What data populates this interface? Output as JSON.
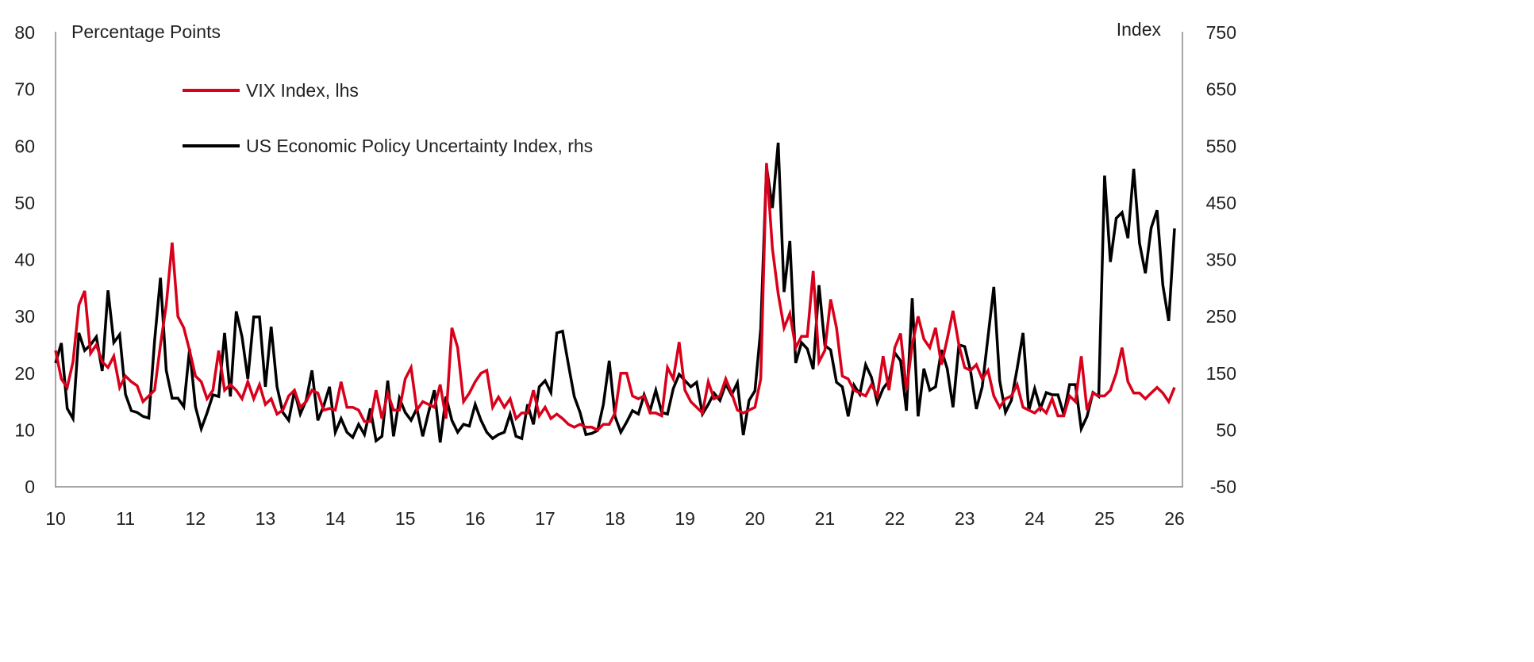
{
  "chart_data": {
    "type": "line",
    "left_axis": {
      "label": "Percentage Points",
      "ylim": [
        0,
        80
      ],
      "ticks": [
        "0",
        "10",
        "20",
        "30",
        "40",
        "50",
        "60",
        "70",
        "80"
      ]
    },
    "right_axis": {
      "label": "Index",
      "ylim": [
        -50,
        750
      ],
      "ticks": [
        "-50",
        "50",
        "150",
        "250",
        "350",
        "450",
        "550",
        "650",
        "750"
      ]
    },
    "x_axis": {
      "ticks": [
        "10",
        "11",
        "12",
        "13",
        "14",
        "15",
        "16",
        "17",
        "18",
        "19",
        "20",
        "21",
        "22",
        "23",
        "24",
        "25",
        "26"
      ],
      "range": [
        "2010-01",
        "2026-01"
      ],
      "frequency": "monthly"
    },
    "grid": false,
    "legend_position": "top-left",
    "series": [
      {
        "name": "VIX Index, lhs",
        "axis": "left",
        "color": "#d9001b",
        "start": "2010-01",
        "values": [
          24,
          19,
          17.5,
          22,
          32,
          34.5,
          23.5,
          25,
          22,
          21,
          23,
          17.5,
          19.5,
          18.5,
          17.8,
          15,
          16,
          17,
          25,
          32,
          43,
          30,
          28,
          24,
          19.5,
          18.5,
          15.5,
          17,
          24,
          17,
          18,
          17,
          15.5,
          18.5,
          15.5,
          18,
          14.5,
          15.5,
          12.8,
          13.5,
          16,
          17,
          14,
          15,
          17,
          16.5,
          13.5,
          13.8,
          13.5,
          18.5,
          14,
          14,
          13.5,
          11.5,
          11.5,
          17,
          12,
          16.5,
          13.5,
          13.5,
          19,
          21,
          13.5,
          15,
          14.5,
          14,
          18,
          12,
          28,
          24.5,
          15,
          16.5,
          18.5,
          20,
          20.5,
          14,
          15.8,
          14,
          15.5,
          12,
          13,
          13,
          17,
          12.5,
          14,
          12,
          12.8,
          12,
          11,
          10.5,
          11,
          10.5,
          10.5,
          10,
          11,
          11,
          13,
          20,
          20,
          16,
          15.5,
          16,
          13,
          13,
          12.5,
          21,
          19,
          25.5,
          17,
          15,
          14,
          13,
          18.5,
          15.5,
          16,
          19,
          16.5,
          13.5,
          13,
          13.5,
          14,
          19,
          57,
          42,
          34,
          28,
          30.5,
          24.5,
          26.5,
          26.5,
          38,
          22,
          24,
          33,
          28,
          19.5,
          19,
          17,
          16.5,
          16,
          18,
          16,
          23,
          17,
          24.5,
          27,
          17,
          25,
          30,
          26,
          24.5,
          28,
          21.5,
          26,
          31,
          25,
          21,
          20.5,
          21.5,
          19,
          20.5,
          16,
          14,
          15.5,
          16,
          18,
          14,
          13.5,
          13,
          14,
          13,
          15.5,
          12.5,
          12.5,
          16,
          15,
          23,
          13.5,
          16.5,
          16,
          16,
          17,
          20,
          24.5,
          18.5,
          16.5,
          16.5,
          15.5,
          16.5,
          17.5,
          16.5,
          15,
          17.5
        ]
      },
      {
        "name": "US Economic Policy Uncertainty Index, rhs",
        "axis": "right",
        "color": "#000000",
        "start": "2010-01",
        "values": [
          168,
          203,
          88,
          70,
          221,
          190,
          200,
          214,
          154,
          296,
          204,
          218,
          113,
          84,
          81,
          74,
          71,
          207,
          318,
          155,
          106,
          106,
          91,
          193,
          91,
          52,
          80,
          112,
          109,
          221,
          109,
          259,
          214,
          140,
          249,
          249,
          126,
          232,
          126,
          81,
          67,
          119,
          78,
          102,
          155,
          67,
          92,
          126,
          46,
          70,
          46,
          37,
          60,
          42,
          88,
          31,
          39,
          137,
          39,
          106,
          81,
          67,
          88,
          39,
          81,
          120,
          28,
          109,
          67,
          46,
          60,
          57,
          95,
          67,
          46,
          35,
          42,
          46,
          78,
          39,
          35,
          95,
          60,
          126,
          137,
          116,
          221,
          224,
          165,
          109,
          81,
          42,
          44,
          49,
          95,
          172,
          74,
          46,
          64,
          84,
          78,
          112,
          84,
          120,
          81,
          78,
          123,
          148,
          137,
          126,
          134,
          78,
          95,
          115,
          102,
          131,
          112,
          133,
          41,
          102,
          119,
          228,
          514,
          441,
          556,
          293,
          383,
          168,
          204,
          193,
          157,
          305,
          199,
          191,
          134,
          126,
          74,
          129,
          113,
          165,
          143,
          98,
          123,
          137,
          186,
          172,
          84,
          282,
          74,
          158,
          120,
          126,
          191,
          158,
          90,
          200,
          197,
          154,
          87,
          126,
          214,
          302,
          137,
          81,
          102,
          158,
          221,
          84,
          123,
          88,
          116,
          112,
          112,
          77,
          130,
          130,
          52,
          74,
          116,
          109,
          498,
          346,
          423,
          433,
          388,
          510,
          379,
          326,
          406,
          437,
          305,
          242,
          405
        ]
      }
    ]
  }
}
